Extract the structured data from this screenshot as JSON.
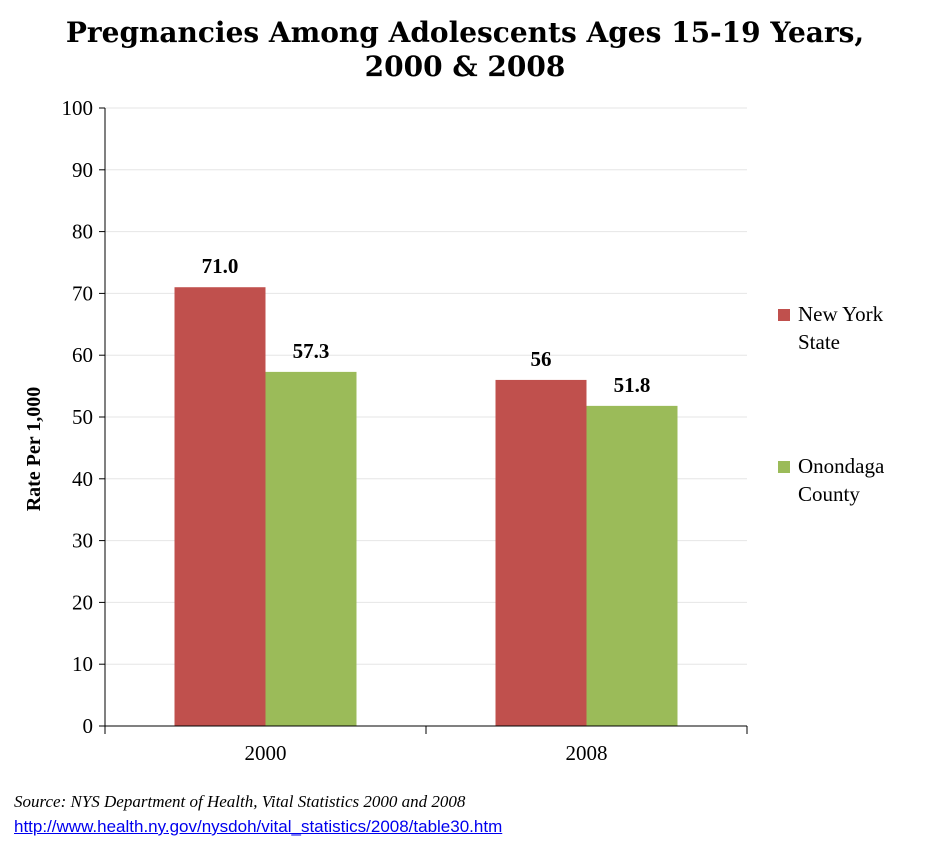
{
  "title_line1": "Pregnancies Among Adolescents Ages 15-19 Years,",
  "title_line2": "2000 & 2008",
  "source_text": "Source: NYS Department of Health, Vital Statistics 2000 and 2008",
  "source_link": "http://www.health.ny.gov/nysdoh/vital_statistics/2008/table30.htm",
  "chart_data": {
    "type": "bar",
    "title": "Pregnancies Among Adolescents Ages 15-19 Years, 2000 & 2008",
    "xlabel": "",
    "ylabel": "Rate Per 1,000",
    "ylim": [
      0,
      100
    ],
    "yticks": [
      "0",
      "10",
      "20",
      "30",
      "40",
      "50",
      "60",
      "70",
      "80",
      "90",
      "100"
    ],
    "grid": true,
    "legend_position": "right",
    "categories": [
      "2000",
      "2008"
    ],
    "series": [
      {
        "name": "New York State",
        "legend_lines": [
          "New York",
          "State"
        ],
        "color": "#C0504D",
        "values": [
          71.0,
          56
        ],
        "labels": [
          "71.0",
          "56"
        ]
      },
      {
        "name": "Onondaga County",
        "legend_lines": [
          "Onondaga",
          "County"
        ],
        "color": "#9BBB59",
        "values": [
          57.3,
          51.8
        ],
        "labels": [
          "57.3",
          "51.8"
        ]
      }
    ]
  }
}
